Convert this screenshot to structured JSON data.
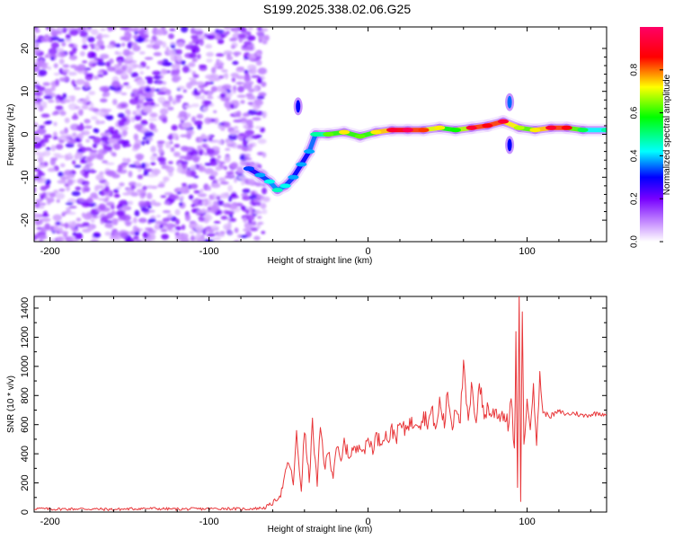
{
  "title": "S199.2025.338.02.06.G25",
  "chart_data": [
    {
      "type": "heatmap",
      "xlabel": "Height of straight line (km)",
      "ylabel": "Frequency (Hz)",
      "xlim": [
        -210,
        150
      ],
      "ylim": [
        -25,
        25
      ],
      "xticks": [
        -200,
        -100,
        0,
        100
      ],
      "yticks": [
        -20,
        -10,
        0,
        10,
        20
      ],
      "grid": false,
      "colorbar": {
        "label": "Normalized spectral amplitude",
        "range": [
          0.0,
          1.0
        ],
        "ticks": [
          "0.0",
          "0.2",
          "0.4",
          "0.6",
          "0.8"
        ],
        "colors": [
          "#ffffff",
          "#cc99ff",
          "#7700ff",
          "#0000ff",
          "#00ffff",
          "#00ff00",
          "#ffff00",
          "#ff0000",
          "#ff0066"
        ]
      },
      "noise_region": {
        "x": [
          -210,
          -65
        ],
        "y": [
          -25,
          25
        ],
        "typical_amplitude": 0.15
      },
      "ridge": [
        {
          "x": -75,
          "y": -8,
          "v": 0.25
        },
        {
          "x": -68,
          "y": -9.5,
          "v": 0.3
        },
        {
          "x": -62,
          "y": -11,
          "v": 0.35
        },
        {
          "x": -57,
          "y": -13,
          "v": 0.38
        },
        {
          "x": -52,
          "y": -12,
          "v": 0.35
        },
        {
          "x": -47,
          "y": -10,
          "v": 0.3
        },
        {
          "x": -42,
          "y": -7,
          "v": 0.3
        },
        {
          "x": -37,
          "y": -4,
          "v": 0.3
        },
        {
          "x": -33,
          "y": 0,
          "v": 0.4
        },
        {
          "x": -25,
          "y": 0,
          "v": 0.55
        },
        {
          "x": -15,
          "y": 0.5,
          "v": 0.65
        },
        {
          "x": -5,
          "y": -0.5,
          "v": 0.55
        },
        {
          "x": 5,
          "y": 0.5,
          "v": 0.65
        },
        {
          "x": 15,
          "y": 1,
          "v": 0.85
        },
        {
          "x": 25,
          "y": 1,
          "v": 0.9
        },
        {
          "x": 35,
          "y": 1,
          "v": 0.75
        },
        {
          "x": 45,
          "y": 1.5,
          "v": 0.65
        },
        {
          "x": 55,
          "y": 1,
          "v": 0.5
        },
        {
          "x": 65,
          "y": 1.5,
          "v": 0.85
        },
        {
          "x": 75,
          "y": 2,
          "v": 0.8
        },
        {
          "x": 85,
          "y": 3,
          "v": 0.85
        },
        {
          "x": 95,
          "y": 1.5,
          "v": 0.6
        },
        {
          "x": 105,
          "y": 1,
          "v": 0.65
        },
        {
          "x": 115,
          "y": 1.5,
          "v": 0.85
        },
        {
          "x": 125,
          "y": 1.5,
          "v": 0.8
        },
        {
          "x": 135,
          "y": 1,
          "v": 0.45
        },
        {
          "x": 150,
          "y": 1,
          "v": 0.4
        }
      ],
      "spikes": [
        {
          "x": -44,
          "y": 6.5,
          "v": 0.3
        },
        {
          "x": 89,
          "y": 7.5,
          "v": 0.35
        },
        {
          "x": 89,
          "y": -2.5,
          "v": 0.3
        }
      ]
    },
    {
      "type": "line",
      "xlabel": "Height of straight line (km)",
      "ylabel": "SNR (10 * v/v)",
      "xlim": [
        -210,
        150
      ],
      "ylim": [
        0,
        1480
      ],
      "xticks": [
        -200,
        -100,
        0,
        100
      ],
      "yticks": [
        0,
        200,
        400,
        600,
        800,
        1000,
        1200,
        1400
      ],
      "grid": false,
      "color": "#e8373a",
      "series": [
        {
          "x": [
            -210,
            -200,
            -180,
            -160,
            -140,
            -120,
            -100,
            -90,
            -80,
            -70,
            -65,
            -60,
            -55,
            -50,
            -47,
            -45,
            -42,
            -40,
            -37,
            -35,
            -32,
            -30,
            -27,
            -25,
            -22,
            -20,
            -17,
            -15,
            -12,
            -10,
            -7,
            -5,
            -2,
            0,
            3,
            5,
            8,
            10,
            13,
            15,
            18,
            20,
            23,
            25,
            28,
            30,
            33,
            35,
            38,
            40,
            43,
            45,
            48,
            50,
            53,
            55,
            58,
            60,
            63,
            65,
            68,
            70,
            73,
            75,
            78,
            80,
            83,
            85,
            88,
            90,
            92,
            93,
            94,
            95,
            96,
            97,
            98,
            100,
            102,
            104,
            106,
            108,
            110,
            115,
            120,
            125,
            130,
            135,
            140,
            145,
            150
          ],
          "y": [
            25,
            20,
            22,
            18,
            25,
            20,
            22,
            25,
            20,
            25,
            30,
            60,
            120,
            350,
            200,
            520,
            150,
            560,
            220,
            600,
            180,
            580,
            300,
            420,
            250,
            460,
            330,
            480,
            380,
            430,
            420,
            480,
            420,
            500,
            440,
            520,
            480,
            540,
            500,
            560,
            520,
            600,
            560,
            620,
            600,
            640,
            620,
            660,
            620,
            700,
            560,
            760,
            600,
            820,
            580,
            740,
            650,
            1000,
            600,
            840,
            640,
            900,
            650,
            720,
            660,
            700,
            660,
            680,
            600,
            780,
            400,
            1200,
            150,
            1480,
            80,
            1350,
            500,
            720,
            620,
            900,
            420,
            960,
            680,
            660,
            690,
            670,
            680,
            660,
            670,
            680,
            670
          ]
        }
      ]
    }
  ]
}
